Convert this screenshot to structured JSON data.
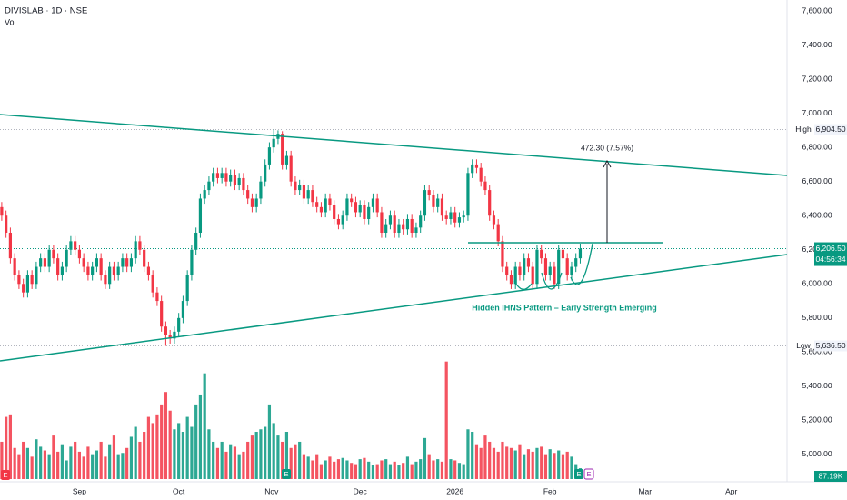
{
  "chart_data": {
    "type": "candlestick",
    "title": "DIVISLAB · 1D · NSE",
    "volume_label": "Vol",
    "open": [
      6450,
      6400,
      6300,
      6150,
      6050,
      6000,
      5950,
      6050,
      6000,
      6100,
      6150,
      6100,
      6200,
      6150,
      6050,
      6100,
      6200,
      6250,
      6200,
      6150,
      6100,
      6050,
      6100,
      6150,
      6050,
      6000,
      6100,
      6050,
      6100,
      6150,
      6100,
      6150,
      6250,
      6200,
      6100,
      6050,
      5950,
      5900,
      5750,
      5700,
      5680,
      5720,
      5800,
      5900,
      6050,
      6200,
      6300,
      6500,
      6550,
      6600,
      6650,
      6620,
      6650,
      6600,
      6640,
      6580,
      6620,
      6550,
      6500,
      6450,
      6500,
      6600,
      6700,
      6800,
      6850,
      6880,
      6700,
      6750,
      6600,
      6550,
      6580,
      6500,
      6550,
      6480,
      6450,
      6420,
      6500,
      6460,
      6380,
      6350,
      6400,
      6500,
      6480,
      6420,
      6460,
      6380,
      6450,
      6500,
      6420,
      6300,
      6350,
      6400,
      6300,
      6350,
      6320,
      6380,
      6300,
      6330,
      6400,
      6550,
      6520,
      6450,
      6500,
      6400,
      6380,
      6420,
      6360,
      6390,
      6400,
      6650,
      6700,
      6680,
      6600,
      6550,
      6400,
      6350,
      6250,
      6100,
      6050,
      6000,
      6100,
      6050,
      6150,
      6100,
      6000,
      6200,
      6150,
      6050,
      6100,
      6000,
      6200,
      6150,
      6050,
      6100,
      6150
    ],
    "high": [
      6480,
      6430,
      6330,
      6180,
      6080,
      6030,
      6080,
      6080,
      6130,
      6180,
      6180,
      6230,
      6230,
      6180,
      6130,
      6230,
      6280,
      6280,
      6230,
      6180,
      6130,
      6130,
      6180,
      6180,
      6080,
      6130,
      6130,
      6130,
      6180,
      6180,
      6180,
      6280,
      6280,
      6230,
      6130,
      6080,
      5980,
      5930,
      5780,
      5730,
      5750,
      5830,
      5930,
      6080,
      6230,
      6330,
      6530,
      6580,
      6630,
      6680,
      6680,
      6680,
      6680,
      6670,
      6670,
      6650,
      6650,
      6580,
      6530,
      6530,
      6630,
      6730,
      6830,
      6904.5,
      6900,
      6895,
      6780,
      6780,
      6630,
      6610,
      6610,
      6580,
      6580,
      6510,
      6480,
      6530,
      6530,
      6490,
      6410,
      6430,
      6530,
      6530,
      6510,
      6490,
      6490,
      6480,
      6530,
      6530,
      6450,
      6380,
      6430,
      6430,
      6380,
      6380,
      6410,
      6410,
      6360,
      6430,
      6580,
      6580,
      6550,
      6530,
      6530,
      6430,
      6450,
      6450,
      6420,
      6430,
      6680,
      6730,
      6730,
      6710,
      6630,
      6580,
      6430,
      6380,
      6280,
      6130,
      6080,
      6130,
      6130,
      6180,
      6180,
      6130,
      6230,
      6230,
      6180,
      6130,
      6130,
      6230,
      6230,
      6180,
      6130,
      6180,
      6236
    ],
    "low": [
      6370,
      6270,
      6120,
      6020,
      5970,
      5920,
      5920,
      5970,
      5970,
      6070,
      6070,
      6070,
      6120,
      6020,
      6020,
      6070,
      6170,
      6170,
      6120,
      6070,
      6020,
      6020,
      6070,
      6020,
      5970,
      5970,
      6020,
      6020,
      6070,
      6070,
      6070,
      6120,
      6170,
      6070,
      6020,
      5920,
      5870,
      5720,
      5636.5,
      5650,
      5650,
      5690,
      5770,
      5870,
      6020,
      6170,
      6270,
      6470,
      6520,
      6570,
      6590,
      6590,
      6570,
      6570,
      6550,
      6550,
      6520,
      6470,
      6420,
      6420,
      6470,
      6570,
      6670,
      6770,
      6820,
      6670,
      6670,
      6570,
      6520,
      6520,
      6470,
      6470,
      6450,
      6420,
      6390,
      6390,
      6430,
      6350,
      6320,
      6320,
      6370,
      6450,
      6390,
      6390,
      6350,
      6350,
      6420,
      6390,
      6270,
      6270,
      6320,
      6270,
      6270,
      6290,
      6290,
      6270,
      6270,
      6300,
      6370,
      6490,
      6420,
      6420,
      6370,
      6350,
      6350,
      6330,
      6330,
      6360,
      6370,
      6620,
      6650,
      6570,
      6520,
      6370,
      6320,
      6220,
      6070,
      6020,
      5970,
      5970,
      6020,
      6020,
      6070,
      5970,
      5970,
      6120,
      6020,
      6020,
      5970,
      5970,
      6120,
      6020,
      6020,
      6070,
      6120
    ],
    "close": [
      6400,
      6300,
      6150,
      6050,
      6000,
      5950,
      6050,
      6000,
      6100,
      6150,
      6100,
      6200,
      6150,
      6050,
      6100,
      6200,
      6250,
      6200,
      6150,
      6100,
      6050,
      6100,
      6150,
      6050,
      6000,
      6100,
      6050,
      6100,
      6150,
      6100,
      6150,
      6250,
      6200,
      6100,
      6050,
      5950,
      5900,
      5750,
      5700,
      5680,
      5720,
      5800,
      5900,
      6050,
      6200,
      6300,
      6500,
      6550,
      6600,
      6650,
      6620,
      6650,
      6600,
      6640,
      6580,
      6620,
      6550,
      6500,
      6450,
      6500,
      6600,
      6700,
      6800,
      6850,
      6880,
      6700,
      6750,
      6600,
      6550,
      6580,
      6500,
      6550,
      6480,
      6450,
      6420,
      6500,
      6460,
      6380,
      6350,
      6400,
      6500,
      6480,
      6420,
      6460,
      6380,
      6450,
      6500,
      6420,
      6300,
      6350,
      6400,
      6300,
      6350,
      6320,
      6380,
      6300,
      6330,
      6400,
      6550,
      6520,
      6450,
      6500,
      6400,
      6380,
      6420,
      6360,
      6390,
      6400,
      6650,
      6700,
      6680,
      6600,
      6550,
      6400,
      6350,
      6250,
      6100,
      6050,
      6000,
      6100,
      6050,
      6150,
      6100,
      6000,
      6200,
      6150,
      6050,
      6100,
      6000,
      6200,
      6150,
      6050,
      6100,
      6150,
      6206.5
    ],
    "volume": [
      300,
      500,
      520,
      250,
      200,
      300,
      250,
      180,
      320,
      260,
      230,
      200,
      350,
      220,
      280,
      150,
      260,
      300,
      220,
      180,
      260,
      200,
      230,
      300,
      180,
      280,
      350,
      200,
      210,
      250,
      340,
      420,
      300,
      380,
      500,
      450,
      520,
      600,
      700,
      550,
      400,
      450,
      380,
      500,
      420,
      600,
      680,
      850,
      400,
      300,
      250,
      300,
      220,
      280,
      260,
      200,
      220,
      300,
      350,
      380,
      400,
      420,
      600,
      450,
      350,
      300,
      380,
      250,
      280,
      300,
      200,
      180,
      150,
      200,
      120,
      150,
      180,
      140,
      160,
      170,
      150,
      130,
      120,
      160,
      170,
      140,
      110,
      120,
      150,
      160,
      120,
      140,
      110,
      130,
      180,
      120,
      140,
      160,
      330,
      200,
      150,
      160,
      140,
      945,
      160,
      150,
      130,
      120,
      400,
      380,
      280,
      250,
      350,
      300,
      250,
      220,
      300,
      260,
      250,
      230,
      280,
      200,
      240,
      220,
      250,
      260,
      200,
      240,
      210,
      230,
      200,
      220,
      180,
      120,
      87.19
    ],
    "volume_value_label": "87.19K",
    "up_color": "#089981",
    "down_color": "#f23645",
    "xlim": [
      -0.4,
      181.9
    ],
    "ylim": [
      4840,
      7664
    ],
    "vlim": [
      0,
      950
    ],
    "yticks": [
      {
        "value": 7600,
        "label": "7,600.00"
      },
      {
        "value": 7400,
        "label": "7,400.00"
      },
      {
        "value": 7200,
        "label": "7,200.00"
      },
      {
        "value": 7000,
        "label": "7,000.00"
      },
      {
        "value": 6800,
        "label": "6,800.00"
      },
      {
        "value": 6600,
        "label": "6,600.00"
      },
      {
        "value": 6400,
        "label": "6,400.00"
      },
      {
        "value": 6200,
        "label": "6,200.00"
      },
      {
        "value": 6000,
        "label": "6,000.00"
      },
      {
        "value": 5800,
        "label": "5,800.00"
      },
      {
        "value": 5600,
        "label": "5,600.00"
      },
      {
        "value": 5400,
        "label": "5,400.00"
      },
      {
        "value": 5200,
        "label": "5,200.00"
      },
      {
        "value": 5000,
        "label": "5,000.00"
      }
    ],
    "xticks": [
      {
        "value": 18,
        "label": "Sep"
      },
      {
        "value": 41,
        "label": "Oct"
      },
      {
        "value": 62.5,
        "label": "Nov"
      },
      {
        "value": 83,
        "label": "Dec"
      },
      {
        "value": 105,
        "label": "2026"
      },
      {
        "value": 127,
        "label": "Feb"
      },
      {
        "value": 149,
        "label": "Mar"
      },
      {
        "value": 169,
        "label": "Apr"
      }
    ],
    "high_marker": {
      "name": "High",
      "value": 6904.5,
      "label": "6,904.50"
    },
    "low_marker": {
      "name": "Low",
      "value": 5636.5,
      "label": "5,636.50"
    },
    "last_price": {
      "value": 6206.5,
      "label": "6,206.50",
      "countdown": "04:56:34"
    },
    "measure_label": "472.30 (7.57%)",
    "pattern_label": "Hidden IHNS Pattern – Early Strength Emerging",
    "events": [
      "E",
      "E",
      "E",
      "E"
    ]
  }
}
